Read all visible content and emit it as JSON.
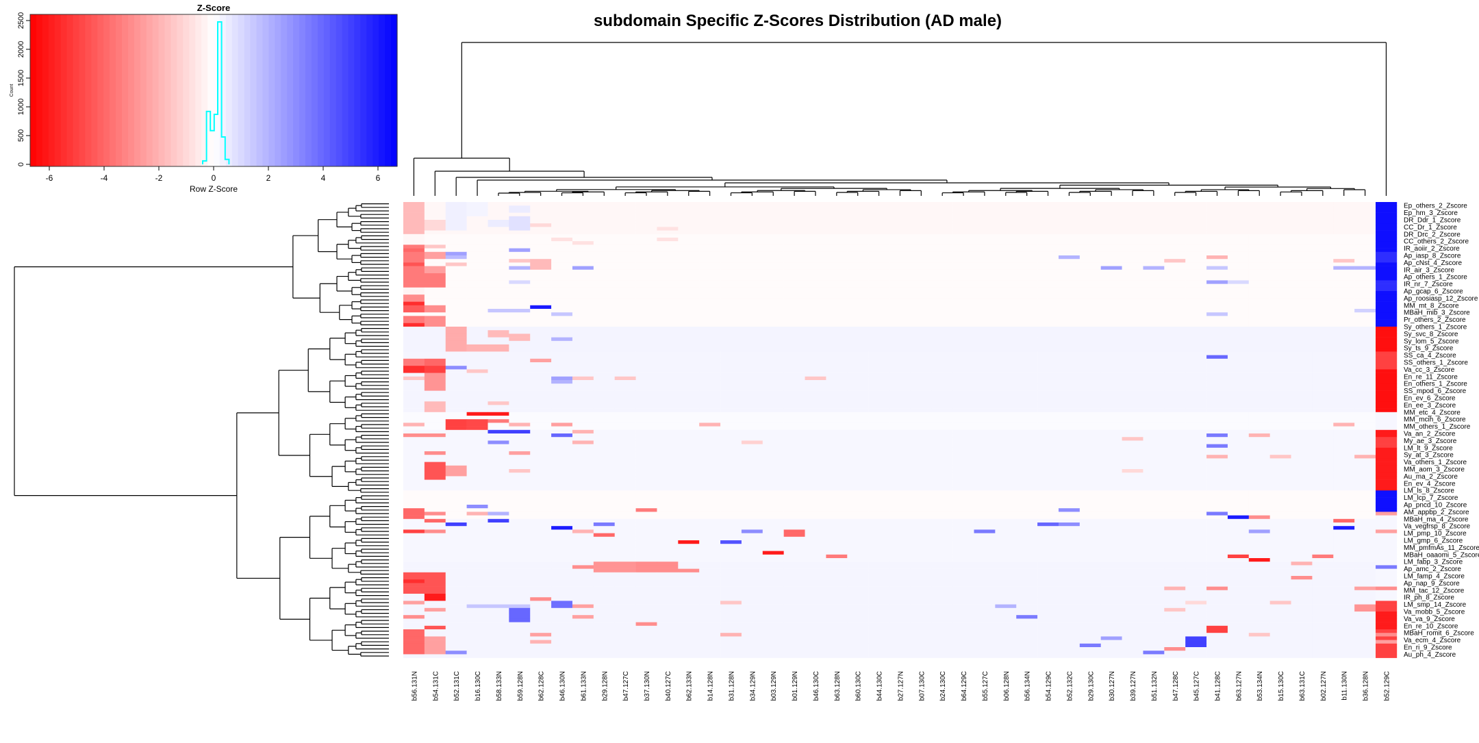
{
  "chart_data": {
    "type": "heatmap",
    "title": "subdomain Specific Z-Scores Distribution (AD male)",
    "color_scale": {
      "low_color": "#ff0000",
      "mid_color": "#ffffff",
      "high_color": "#0000ff",
      "range": [
        -6.7,
        6.7
      ]
    },
    "color_key": {
      "title": "Z-Score",
      "xlabel": "Row Z-Score",
      "ylabel": "Count",
      "x_ticks": [
        "-6",
        "-4",
        "-2",
        "0",
        "2",
        "4",
        "6"
      ],
      "x_tick_values": [
        -6,
        -4,
        -2,
        0,
        2,
        4,
        6
      ],
      "y_ticks": [
        "0",
        "500",
        "1000",
        "1500",
        "2000",
        "2500"
      ],
      "y_tick_values": [
        0,
        500,
        1000,
        1500,
        2000,
        2500
      ],
      "xlim": [
        -6.7,
        6.7
      ],
      "ylim": [
        0,
        2600
      ],
      "histogram_color": "#00ffff",
      "histogram": {
        "bin_edges": [
          -0.4,
          -0.26,
          -0.12,
          0.02,
          0.15,
          0.29,
          0.42,
          0.56
        ],
        "counts": [
          60,
          920,
          587,
          869,
          2476,
          476,
          87
        ]
      }
    },
    "columns": [
      "b56.131N",
      "b54.131C",
      "b52.131C",
      "b16.130C",
      "b58.133N",
      "b59.128N",
      "b62.128C",
      "b46.130N",
      "b61.133N",
      "b29.128N",
      "b47.127C",
      "b37.130N",
      "b40.127C",
      "b62.133N",
      "b14.128N",
      "b31.128N",
      "b34.129N",
      "b03.129N",
      "b01.129N",
      "b46.130C",
      "b63.128N",
      "b60.130C",
      "b44.130C",
      "b27.127N",
      "b07.130C",
      "b24.130C",
      "b64.129C",
      "b55.127C",
      "b06.128N",
      "b56.134N",
      "b54.129C",
      "b52.132C",
      "b29.130C",
      "b30.127N",
      "b39.127N",
      "b51.132N",
      "b47.128C",
      "b45.127C",
      "b41.128C",
      "b63.127N",
      "b53.134N",
      "b15.130C",
      "b63.131C",
      "b02.127N",
      "b11.130N",
      "b36.128N",
      "b52.129C"
    ],
    "row_count": 128,
    "row_labels": [
      "Ep_others_2_Zscore",
      "Ep_hm_3_Zscore",
      "DR_Ddr_1_Zscore",
      "CC_Dr_1_Zscore",
      "DR_Drc_2_Zscore",
      "CC_others_2_Zscore",
      "IR_aoiir_2_Zscore",
      "Ap_iasp_8_Zscore",
      "Ap_cNst_4_Zscore",
      "IR_air_3_Zscore",
      "Ap_others_1_Zscore",
      "IR_nr_7_Zscore",
      "Ap_gcap_6_Zscore",
      "Ap_roosiasp_12_Zscore",
      "MM_mt_8_Zscore",
      "MBaH_mib_3_Zscore",
      "Pr_others_2_Zscore",
      "Sy_others_1_Zscore",
      "Sy_svc_8_Zscore",
      "Sy_lom_5_Zscore",
      "Sy_ts_9_Zscore",
      "SS_ca_4_Zscore",
      "SS_others_1_Zscore",
      "Va_cc_3_Zscore",
      "En_re_11_Zscore",
      "En_others_1_Zscore",
      "SS_mpod_6_Zscore",
      "En_ev_6_Zscore",
      "En_ee_3_Zscore",
      "MM_etc_4_Zscore",
      "MM_mcih_6_Zscore",
      "MM_others_1_Zscore",
      "Va_an_2_Zscore",
      "My_ae_3_Zscore",
      "LM_lt_9_Zscore",
      "Sy_at_3_Zscore",
      "Va_others_1_Zscore",
      "MM_aom_3_Zscore",
      "Au_ma_2_Zscore",
      "En_ev_4_Zscore",
      "LM_ls_8_Zscore",
      "LM_lcp_7_Zscore",
      "Ap_pncd_10_Zscore",
      "AM_appbp_2_Zscore",
      "MBaH_ma_4_Zscore",
      "Va_vegfrsp_8_Zscore",
      "LM_pmp_10_Zscore",
      "LM_gmp_6_Zscore",
      "MM_pmfmAs_11_Zscore",
      "MBaH_oaaomi_5_Zscore",
      "LM_fabp_3_Zscore",
      "Ap_amc_2_Zscore",
      "LM_famp_4_Zscore",
      "Ap_nap_9_Zscore",
      "MM_tac_12_Zscore",
      "IR_ph_8_Zscore",
      "LM_smp_14_Zscore",
      "Va_mobb_5_Zscore",
      "Va_va_9_Zscore",
      "En_re_10_Zscore",
      "MBaH_romit_6_Zscore",
      "Va_ecm_4_Zscore",
      "En_ri_9_Zscore",
      "Au_ph_4_Zscore"
    ],
    "row_base_runs": [
      [
        0,
        8,
        -0.2
      ],
      [
        9,
        11,
        -0.1
      ],
      [
        12,
        34,
        -0.1
      ],
      [
        35,
        41,
        0.3
      ],
      [
        42,
        58,
        0.25
      ],
      [
        59,
        63,
        0.1
      ],
      [
        64,
        80,
        0.2
      ],
      [
        81,
        88,
        -0.1
      ],
      [
        89,
        100,
        0.2
      ],
      [
        101,
        127,
        0.25
      ]
    ],
    "value_runs": [
      [
        0,
        0,
        8,
        -1.8
      ],
      [
        0,
        9,
        11,
        -0.2
      ],
      [
        0,
        12,
        23,
        -3.5
      ],
      [
        0,
        13,
        13,
        -4
      ],
      [
        0,
        17,
        17,
        -4.5
      ],
      [
        0,
        24,
        25,
        -0.3
      ],
      [
        0,
        26,
        27,
        -3
      ],
      [
        0,
        28,
        28,
        -5.5
      ],
      [
        0,
        29,
        30,
        -4.3
      ],
      [
        0,
        32,
        33,
        -3.5
      ],
      [
        0,
        34,
        34,
        -5.5
      ],
      [
        0,
        44,
        45,
        -3.5
      ],
      [
        0,
        46,
        47,
        -5.5
      ],
      [
        0,
        49,
        49,
        -1.5
      ],
      [
        0,
        62,
        62,
        -2
      ],
      [
        0,
        65,
        65,
        -3
      ],
      [
        0,
        86,
        88,
        -4
      ],
      [
        0,
        92,
        92,
        -5
      ],
      [
        0,
        104,
        109,
        -4.5
      ],
      [
        0,
        106,
        106,
        -5.5
      ],
      [
        0,
        112,
        112,
        -2.5
      ],
      [
        0,
        116,
        116,
        -3
      ],
      [
        0,
        120,
        126,
        -4
      ],
      [
        1,
        5,
        7,
        -1
      ],
      [
        1,
        12,
        12,
        -1.5
      ],
      [
        1,
        14,
        15,
        -2.5
      ],
      [
        1,
        18,
        19,
        -2.5
      ],
      [
        1,
        20,
        23,
        -3.5
      ],
      [
        1,
        29,
        30,
        -3
      ],
      [
        1,
        32,
        34,
        -3
      ],
      [
        1,
        44,
        45,
        -4
      ],
      [
        1,
        46,
        47,
        -5
      ],
      [
        1,
        48,
        52,
        -2.8
      ],
      [
        1,
        56,
        58,
        -1.8
      ],
      [
        1,
        65,
        65,
        -3
      ],
      [
        1,
        70,
        70,
        -3
      ],
      [
        1,
        73,
        77,
        -4.5
      ],
      [
        1,
        87,
        87,
        -3
      ],
      [
        1,
        89,
        89,
        -4
      ],
      [
        1,
        92,
        92,
        -3
      ],
      [
        1,
        104,
        109,
        -4.5
      ],
      [
        1,
        110,
        111,
        -6
      ],
      [
        1,
        114,
        114,
        -2.5
      ],
      [
        1,
        119,
        119,
        -4.5
      ],
      [
        1,
        122,
        126,
        -2.5
      ],
      [
        2,
        0,
        7,
        0.4
      ],
      [
        2,
        14,
        14,
        2.5
      ],
      [
        2,
        15,
        15,
        1.8
      ],
      [
        2,
        17,
        17,
        -1.5
      ],
      [
        2,
        35,
        41,
        -2.2
      ],
      [
        2,
        46,
        46,
        3
      ],
      [
        2,
        61,
        63,
        -5
      ],
      [
        2,
        74,
        76,
        -2.5
      ],
      [
        2,
        90,
        90,
        5
      ],
      [
        2,
        126,
        126,
        3
      ],
      [
        3,
        0,
        3,
        0.3
      ],
      [
        3,
        40,
        41,
        -2
      ],
      [
        3,
        47,
        47,
        -1.5
      ],
      [
        3,
        59,
        59,
        -6
      ],
      [
        3,
        61,
        63,
        -4.8
      ],
      [
        3,
        85,
        85,
        3
      ],
      [
        3,
        87,
        87,
        -2
      ],
      [
        3,
        113,
        113,
        1.5
      ],
      [
        4,
        5,
        6,
        0.5
      ],
      [
        4,
        30,
        30,
        1.5
      ],
      [
        4,
        36,
        37,
        -1.8
      ],
      [
        4,
        40,
        41,
        -2
      ],
      [
        4,
        56,
        56,
        -1.5
      ],
      [
        4,
        59,
        59,
        -6
      ],
      [
        4,
        61,
        61,
        -3.5
      ],
      [
        4,
        64,
        64,
        5
      ],
      [
        4,
        67,
        67,
        3
      ],
      [
        4,
        87,
        87,
        2
      ],
      [
        4,
        89,
        89,
        5
      ],
      [
        4,
        113,
        113,
        1.5
      ],
      [
        5,
        1,
        2,
        0.5
      ],
      [
        5,
        4,
        7,
        0.8
      ],
      [
        5,
        13,
        13,
        2.5
      ],
      [
        5,
        16,
        16,
        -1.5
      ],
      [
        5,
        18,
        18,
        2
      ],
      [
        5,
        22,
        22,
        1
      ],
      [
        5,
        30,
        30,
        1.5
      ],
      [
        5,
        37,
        38,
        -1.8
      ],
      [
        5,
        62,
        62,
        -2
      ],
      [
        5,
        64,
        64,
        5
      ],
      [
        5,
        70,
        70,
        -2.5
      ],
      [
        5,
        75,
        75,
        -1.5
      ],
      [
        5,
        113,
        113,
        1.5
      ],
      [
        5,
        114,
        117,
        4
      ],
      [
        6,
        6,
        6,
        -1
      ],
      [
        6,
        16,
        18,
        -1.8
      ],
      [
        6,
        29,
        29,
        6
      ],
      [
        6,
        44,
        44,
        -2.5
      ],
      [
        6,
        111,
        111,
        -3
      ],
      [
        6,
        121,
        121,
        -2.5
      ],
      [
        6,
        123,
        123,
        -2
      ],
      [
        7,
        10,
        10,
        -0.8
      ],
      [
        7,
        31,
        31,
        1.5
      ],
      [
        7,
        38,
        38,
        2
      ],
      [
        7,
        49,
        49,
        2.5
      ],
      [
        7,
        50,
        50,
        2
      ],
      [
        7,
        62,
        62,
        -2.5
      ],
      [
        7,
        65,
        65,
        4
      ],
      [
        7,
        91,
        91,
        6
      ],
      [
        7,
        112,
        113,
        3.8
      ],
      [
        8,
        11,
        11,
        -0.8
      ],
      [
        8,
        18,
        18,
        2.5
      ],
      [
        8,
        49,
        49,
        -1.5
      ],
      [
        8,
        64,
        64,
        -2
      ],
      [
        8,
        67,
        67,
        -2
      ],
      [
        8,
        92,
        92,
        -2
      ],
      [
        8,
        102,
        102,
        -3
      ],
      [
        8,
        113,
        113,
        -2.5
      ],
      [
        8,
        116,
        116,
        -2.5
      ],
      [
        9,
        90,
        90,
        3.5
      ],
      [
        9,
        93,
        93,
        -4
      ],
      [
        9,
        101,
        103,
        -2.8
      ],
      [
        10,
        49,
        49,
        -1.5
      ],
      [
        10,
        101,
        103,
        -2.8
      ],
      [
        11,
        86,
        86,
        -3.5
      ],
      [
        11,
        101,
        103,
        -3
      ],
      [
        11,
        118,
        118,
        -3
      ],
      [
        12,
        7,
        7,
        -0.8
      ],
      [
        12,
        10,
        10,
        -0.8
      ],
      [
        12,
        101,
        103,
        -3
      ],
      [
        13,
        95,
        95,
        -6
      ],
      [
        13,
        103,
        103,
        -3
      ],
      [
        14,
        62,
        62,
        -2
      ],
      [
        15,
        95,
        95,
        4.5
      ],
      [
        15,
        112,
        112,
        -1.5
      ],
      [
        15,
        121,
        121,
        -2
      ],
      [
        16,
        67,
        67,
        -1.2
      ],
      [
        16,
        92,
        92,
        3
      ],
      [
        17,
        98,
        98,
        -6
      ],
      [
        18,
        92,
        93,
        -4
      ],
      [
        19,
        49,
        49,
        -1.5
      ],
      [
        20,
        99,
        99,
        -3.5
      ],
      [
        27,
        92,
        92,
        3.5
      ],
      [
        28,
        113,
        113,
        2
      ],
      [
        29,
        116,
        116,
        3.5
      ],
      [
        30,
        90,
        90,
        4
      ],
      [
        31,
        15,
        15,
        2
      ],
      [
        31,
        86,
        86,
        3
      ],
      [
        31,
        90,
        90,
        3
      ],
      [
        32,
        124,
        124,
        3.5
      ],
      [
        33,
        18,
        18,
        2.5
      ],
      [
        33,
        122,
        122,
        2.5
      ],
      [
        34,
        66,
        66,
        -1.5
      ],
      [
        34,
        75,
        75,
        -1
      ],
      [
        35,
        18,
        18,
        2
      ],
      [
        35,
        126,
        126,
        3.5
      ],
      [
        36,
        16,
        16,
        -1.5
      ],
      [
        36,
        108,
        108,
        -2
      ],
      [
        36,
        114,
        114,
        -1.5
      ],
      [
        36,
        125,
        125,
        -3
      ],
      [
        37,
        112,
        112,
        -1
      ],
      [
        37,
        122,
        124,
        5
      ],
      [
        38,
        15,
        15,
        -2
      ],
      [
        38,
        18,
        18,
        1.5
      ],
      [
        38,
        22,
        22,
        2.5
      ],
      [
        38,
        31,
        31,
        1.5
      ],
      [
        38,
        43,
        43,
        4
      ],
      [
        38,
        65,
        65,
        3.5
      ],
      [
        38,
        68,
        68,
        3.5
      ],
      [
        38,
        71,
        71,
        -2
      ],
      [
        38,
        87,
        87,
        3.5
      ],
      [
        38,
        108,
        108,
        -3
      ],
      [
        38,
        119,
        120,
        -5
      ],
      [
        39,
        22,
        22,
        1
      ],
      [
        39,
        88,
        88,
        6
      ],
      [
        39,
        99,
        99,
        -5
      ],
      [
        40,
        65,
        65,
        -2
      ],
      [
        40,
        88,
        88,
        -3
      ],
      [
        40,
        92,
        92,
        2.5
      ],
      [
        40,
        100,
        100,
        -6
      ],
      [
        40,
        121,
        121,
        -1.5
      ],
      [
        41,
        71,
        71,
        -1.5
      ],
      [
        41,
        112,
        112,
        -1.5
      ],
      [
        42,
        101,
        101,
        -2
      ],
      [
        42,
        105,
        105,
        -3
      ],
      [
        43,
        99,
        99,
        -3.5
      ],
      [
        44,
        16,
        16,
        -1.5
      ],
      [
        44,
        18,
        18,
        2
      ],
      [
        44,
        62,
        62,
        -2
      ],
      [
        44,
        89,
        89,
        -4
      ],
      [
        44,
        91,
        91,
        6
      ],
      [
        45,
        18,
        18,
        2
      ],
      [
        45,
        30,
        30,
        1.2
      ],
      [
        45,
        71,
        71,
        -2
      ],
      [
        45,
        108,
        108,
        -2.5
      ],
      [
        45,
        113,
        114,
        -2.8
      ],
      [
        46,
        0,
        34,
        6.3
      ],
      [
        46,
        14,
        16,
        5.5
      ],
      [
        46,
        22,
        24,
        5.5
      ],
      [
        46,
        35,
        58,
        -6.3
      ],
      [
        46,
        42,
        46,
        -5
      ],
      [
        46,
        59,
        63,
        0.2
      ],
      [
        46,
        64,
        80,
        -6
      ],
      [
        46,
        66,
        68,
        -5
      ],
      [
        46,
        81,
        86,
        6.3
      ],
      [
        46,
        87,
        87,
        -2.5
      ],
      [
        46,
        88,
        91,
        0.2
      ],
      [
        46,
        92,
        92,
        -2.5
      ],
      [
        46,
        93,
        101,
        0.2
      ],
      [
        46,
        102,
        102,
        3.5
      ],
      [
        46,
        103,
        107,
        0.2
      ],
      [
        46,
        108,
        108,
        -3
      ],
      [
        46,
        109,
        111,
        0.2
      ],
      [
        46,
        112,
        127,
        -5
      ],
      [
        46,
        115,
        119,
        -6
      ],
      [
        46,
        121,
        121,
        -3
      ],
      [
        46,
        123,
        123,
        -2.5
      ]
    ],
    "row_dendrogram": true,
    "column_dendrogram": true,
    "grid": false
  }
}
